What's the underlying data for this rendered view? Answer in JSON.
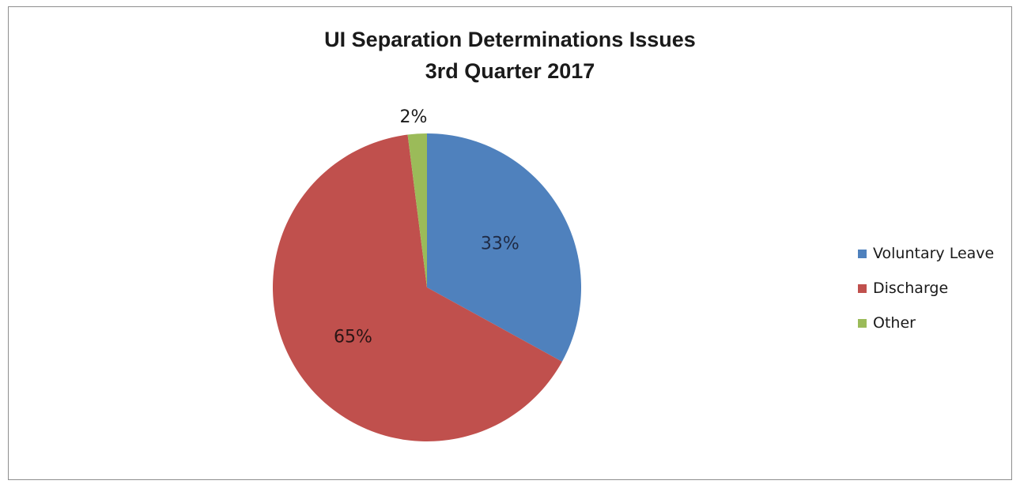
{
  "chart_data": {
    "type": "pie",
    "title": "UI Separation Determinations Issues",
    "subtitle": "3rd Quarter 2017",
    "slices": [
      {
        "label": "Voluntary Leave",
        "value": 33,
        "display": "33%",
        "color": "#4f81bd"
      },
      {
        "label": "Discharge",
        "value": 65,
        "display": "65%",
        "color": "#c0504d"
      },
      {
        "label": "Other",
        "value": 2,
        "display": "2%",
        "color": "#9bbb59"
      }
    ],
    "legend_position": "right"
  }
}
